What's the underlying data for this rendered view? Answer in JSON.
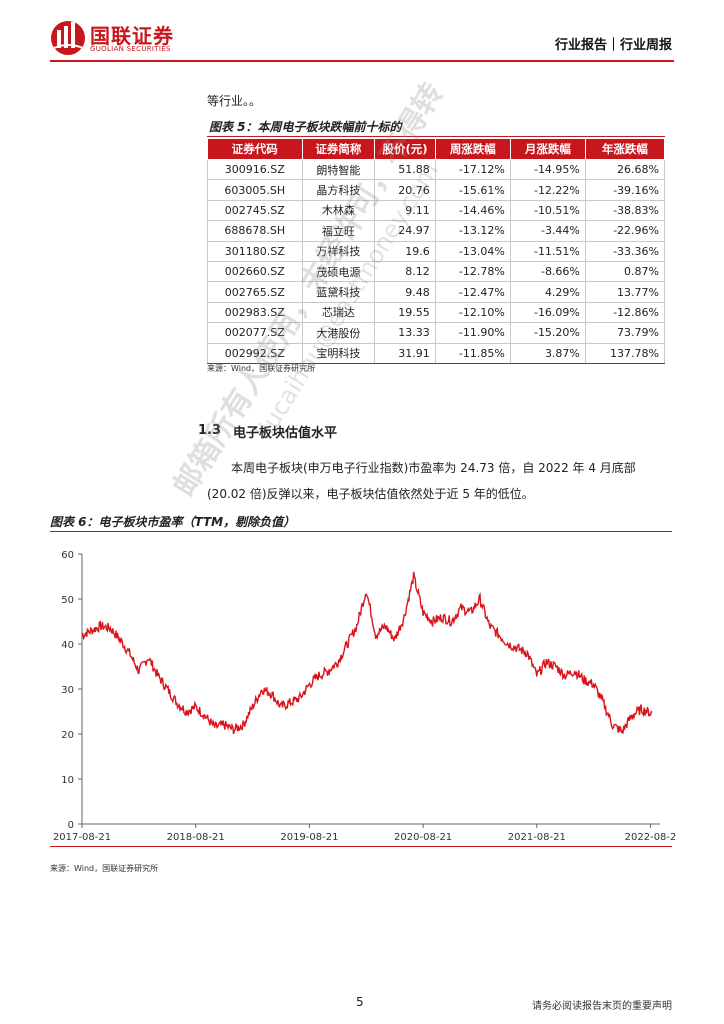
{
  "header": {
    "logo_cn": "国联证券",
    "logo_en": "GUOLIAN SECURITIES",
    "report_type": "行业报告｜行业周报",
    "brand_color": "#c8161d"
  },
  "intro_text": "等行业。。",
  "table": {
    "title": "图表 5：本周电子板块跌幅前十标的",
    "headers": [
      "证券代码",
      "证券简称",
      "股价(元)",
      "周涨跌幅",
      "月涨跌幅",
      "年涨跌幅"
    ],
    "rows": [
      [
        "300916.SZ",
        "朗特智能",
        "51.88",
        "-17.12%",
        "-14.95%",
        "26.68%"
      ],
      [
        "603005.SH",
        "晶方科技",
        "20.76",
        "-15.61%",
        "-12.22%",
        "-39.16%"
      ],
      [
        "002745.SZ",
        "木林森",
        "9.11",
        "-14.46%",
        "-10.51%",
        "-38.83%"
      ],
      [
        "688678.SH",
        "福立旺",
        "24.97",
        "-13.12%",
        "-3.44%",
        "-22.96%"
      ],
      [
        "301180.SZ",
        "万祥科技",
        "19.6",
        "-13.04%",
        "-11.51%",
        "-33.36%"
      ],
      [
        "002660.SZ",
        "茂硕电源",
        "8.12",
        "-12.78%",
        "-8.66%",
        "0.87%"
      ],
      [
        "002765.SZ",
        "蓝黛科技",
        "9.48",
        "-12.47%",
        "4.29%",
        "13.77%"
      ],
      [
        "002983.SZ",
        "芯瑞达",
        "19.55",
        "-12.10%",
        "-16.09%",
        "-12.86%"
      ],
      [
        "002077.SZ",
        "大港股份",
        "13.33",
        "-11.90%",
        "-15.20%",
        "73.79%"
      ],
      [
        "002992.SZ",
        "宝明科技",
        "31.91",
        "-11.85%",
        "3.87%",
        "137.78%"
      ]
    ],
    "source": "来源：Wind，国联证券研究所"
  },
  "section": {
    "number": "1.3",
    "title": "电子板块估值水平",
    "paragraph": "本周电子板块(申万电子行业指数)市盈率为 24.73 倍，自 2022 年 4 月底部(20.02 倍)反弹以来，电子板块估值依然处于近 5 年的低位。"
  },
  "chart_title": "图表 6：电子板块市盈率（TTM，剔除负值）",
  "chart_source": "来源：Wind，国联证券研究所",
  "chart_data": {
    "type": "line",
    "title": "图表 6：电子板块市盈率（TTM，剔除负值）",
    "xlabel": "",
    "ylabel": "",
    "ylim": [
      0,
      60
    ],
    "yticks": [
      0,
      10,
      20,
      30,
      40,
      50,
      60
    ],
    "xticks": [
      "2017-08-21",
      "2018-08-21",
      "2019-08-21",
      "2020-08-21",
      "2021-08-21",
      "2022-08-2"
    ],
    "grid": false,
    "line_color": "#d9141b",
    "series": [
      {
        "x": [
          "2017-08",
          "2017-09",
          "2017-10",
          "2017-11",
          "2017-12",
          "2018-01",
          "2018-02",
          "2018-03",
          "2018-04",
          "2018-05",
          "2018-06",
          "2018-07",
          "2018-08",
          "2018-09",
          "2018-10",
          "2018-11",
          "2018-12",
          "2019-01",
          "2019-02",
          "2019-03",
          "2019-04",
          "2019-05",
          "2019-06",
          "2019-07",
          "2019-08",
          "2019-09",
          "2019-10",
          "2019-11",
          "2019-12",
          "2020-01",
          "2020-02",
          "2020-03",
          "2020-04",
          "2020-05",
          "2020-06",
          "2020-07",
          "2020-08",
          "2020-09",
          "2020-10",
          "2020-11",
          "2020-12",
          "2021-01",
          "2021-02",
          "2021-03",
          "2021-04",
          "2021-05",
          "2021-06",
          "2021-07",
          "2021-08",
          "2021-09",
          "2021-10",
          "2021-11",
          "2021-12",
          "2022-01",
          "2022-02",
          "2022-03",
          "2022-04",
          "2022-05",
          "2022-06",
          "2022-07",
          "2022-08"
        ],
        "values": [
          42,
          43,
          44,
          43.5,
          41,
          38,
          34,
          37,
          33,
          30,
          27,
          25,
          26,
          24,
          21.5,
          22,
          21,
          22,
          26,
          30,
          29,
          26,
          27,
          28,
          31,
          33,
          34,
          36,
          40,
          44,
          52,
          42,
          44,
          41,
          46,
          55,
          47,
          45,
          46,
          45,
          48,
          47,
          50,
          44,
          42,
          40,
          39,
          38,
          33,
          36,
          35,
          33,
          34,
          32,
          31,
          27,
          22,
          20.5,
          24,
          25.5,
          24.7
        ]
      }
    ]
  },
  "footer": {
    "page_number": "5",
    "disclaimer": "请务必阅读报告末页的重要声明"
  },
  "watermark": {
    "line1": "邮箱所有人使用，未经许可，不得转",
    "line2": "liucaihou@eastmoney.com"
  }
}
